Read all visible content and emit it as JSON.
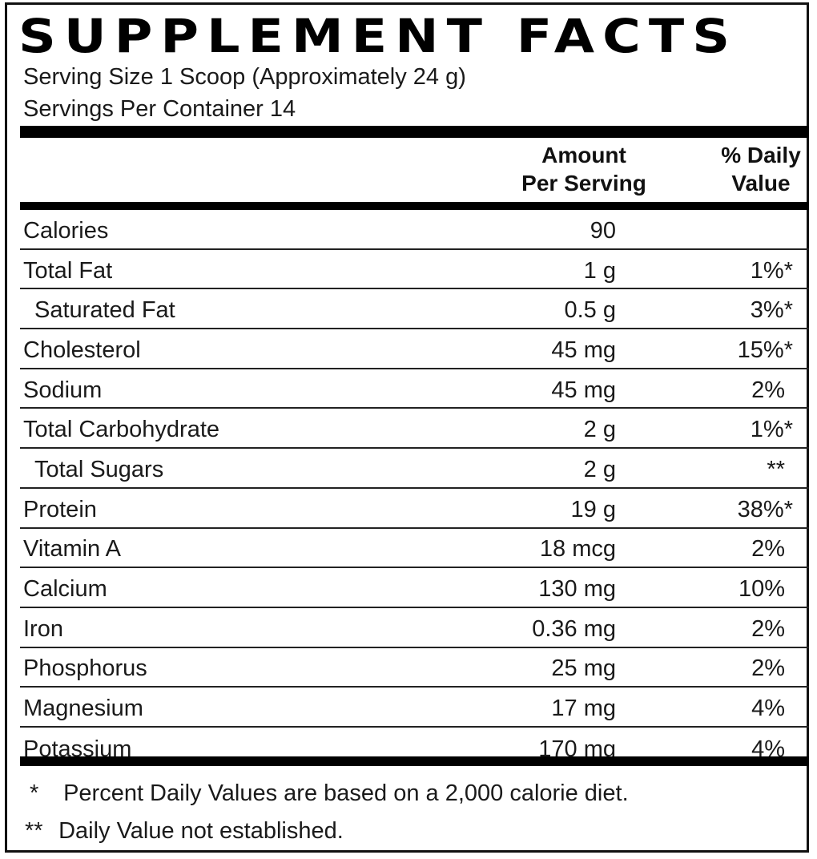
{
  "label": {
    "title": "SUPPLEMENT FACTS",
    "serving_size": "Serving Size 1 Scoop (Approximately 24 g)",
    "servings_per_container": "Servings Per Container 14"
  },
  "columns": {
    "amount_line1": "Amount",
    "amount_line2": "Per Serving",
    "dv_line1": "% Daily",
    "dv_line2": "Value"
  },
  "rows": [
    {
      "name": "Calories",
      "amount": "90",
      "dv": ""
    },
    {
      "name": "Total Fat",
      "amount": "1 g",
      "dv": "1%*"
    },
    {
      "name": "Saturated Fat",
      "amount": "0.5 g",
      "dv": "3%*"
    },
    {
      "name": "Cholesterol",
      "amount": "45 mg",
      "dv": "15%*"
    },
    {
      "name": "Sodium",
      "amount": "45 mg",
      "dv": "2%"
    },
    {
      "name": "Total Carbohydrate",
      "amount": "2 g",
      "dv": "1%*"
    },
    {
      "name": "Total Sugars",
      "amount": "2 g",
      "dv": "**"
    },
    {
      "name": "Protein",
      "amount": "19 g",
      "dv": "38%*"
    },
    {
      "name": "Vitamin A",
      "amount": "18 mcg",
      "dv": "2%"
    },
    {
      "name": "Calcium",
      "amount": "130 mg",
      "dv": "10%"
    },
    {
      "name": "Iron",
      "amount": "0.36 mg",
      "dv": "2%"
    },
    {
      "name": "Phosphorus",
      "amount": "25 mg",
      "dv": "2%"
    },
    {
      "name": "Magnesium",
      "amount": "17 mg",
      "dv": "4%"
    },
    {
      "name": "Potassium",
      "amount": "170 mg",
      "dv": "4%"
    }
  ],
  "footnotes": [
    {
      "mark": "*",
      "text": "Percent Daily Values are based on a 2,000 calorie diet."
    },
    {
      "mark": "**",
      "text": "Daily Value not established."
    }
  ]
}
